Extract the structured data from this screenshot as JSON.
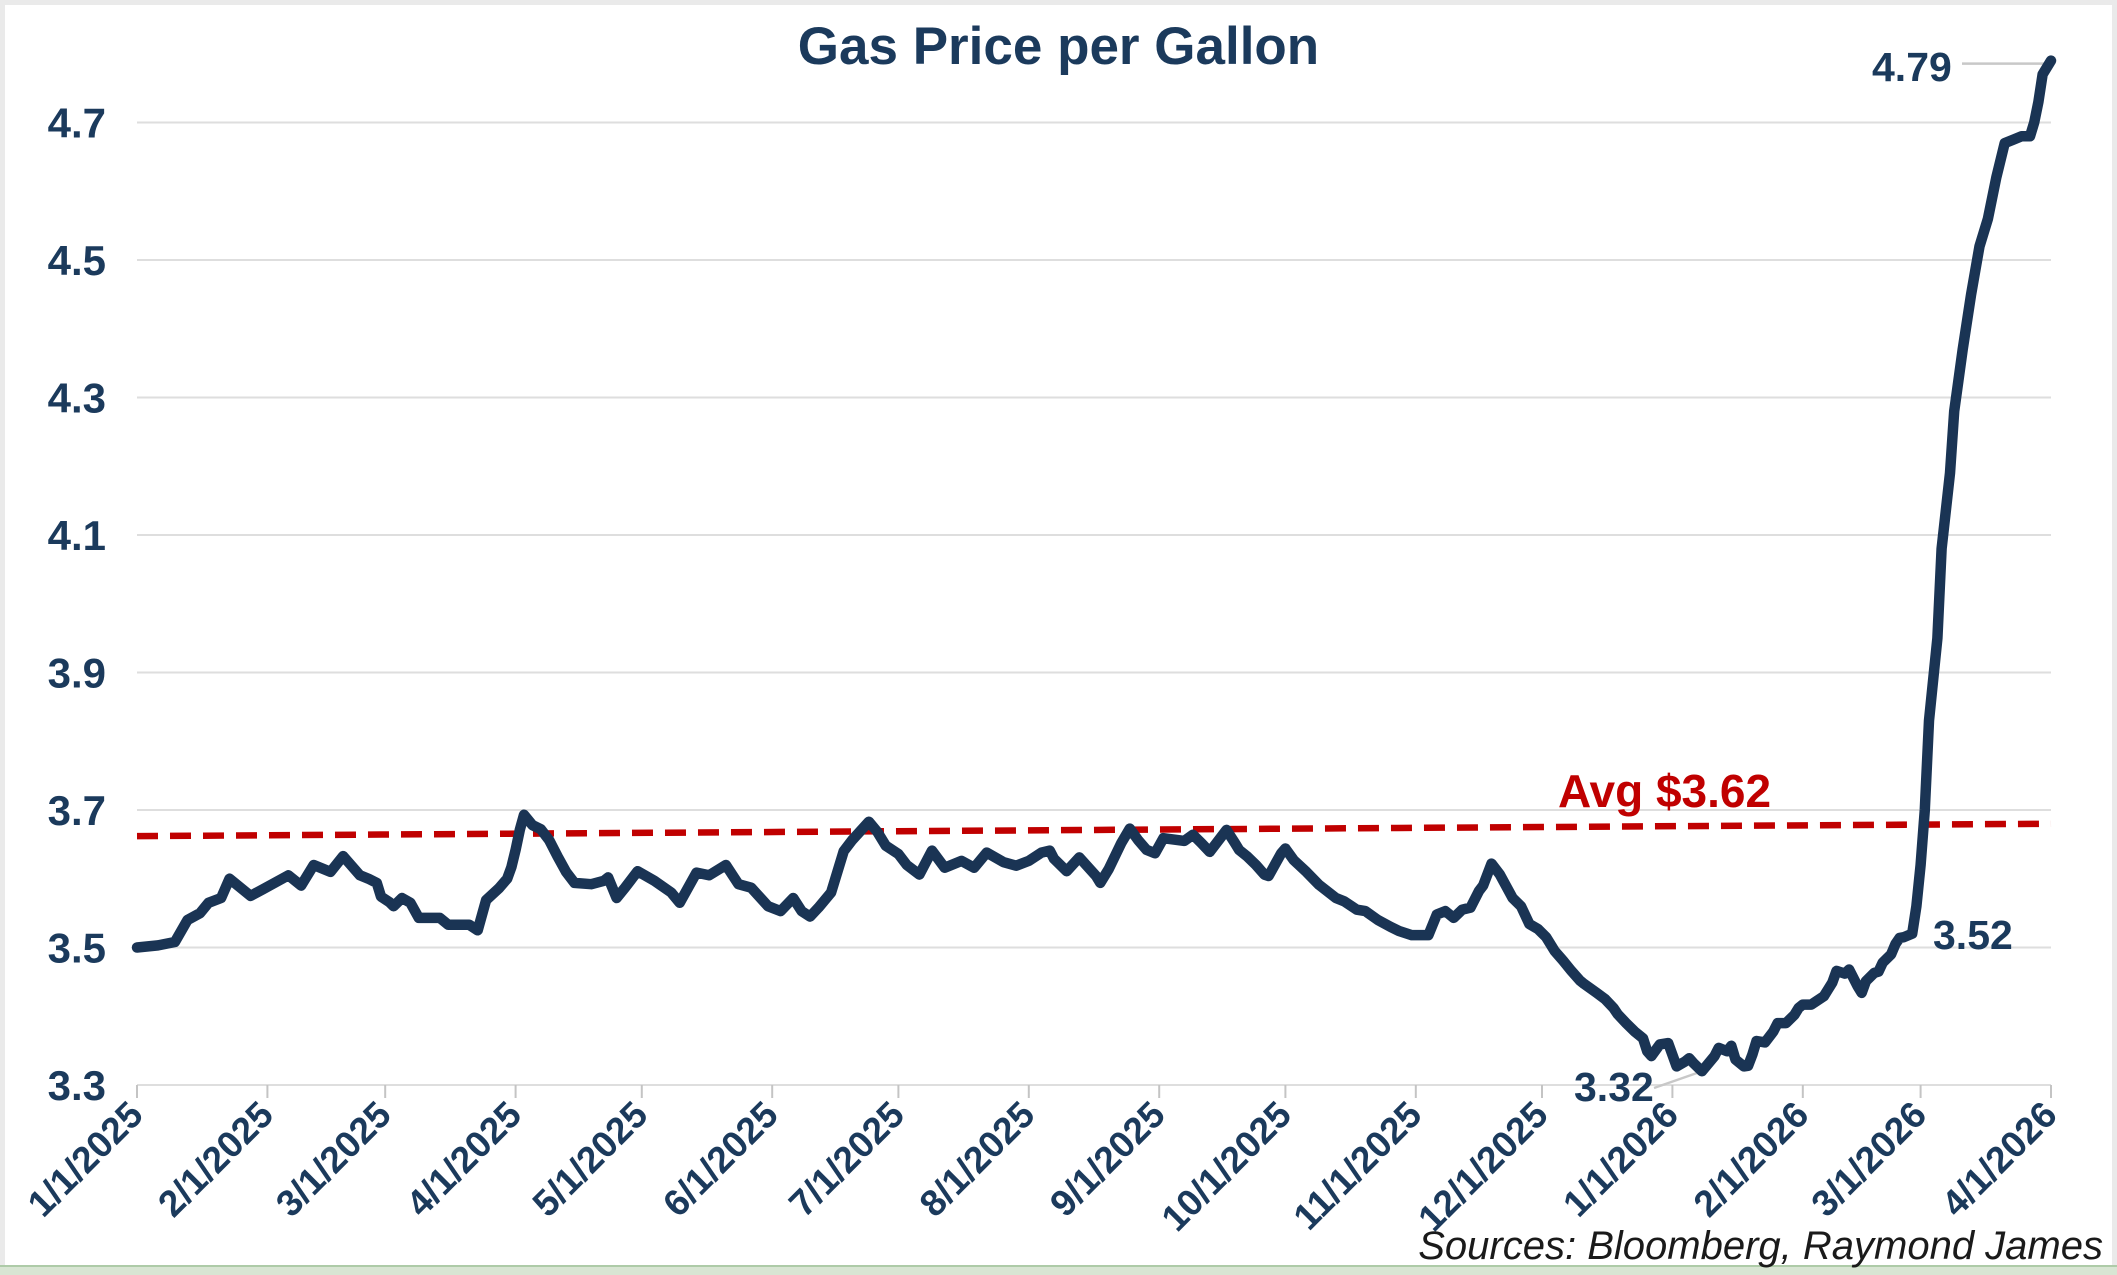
{
  "page": {
    "background": "#ffffff",
    "border_color": "#eaeaea",
    "bottom_strip_color": "#d8e5d3"
  },
  "header": {
    "title": "Gas Price per Gallon"
  },
  "footer": {
    "sources": "Sources: Bloomberg, Raymond James"
  },
  "colors": {
    "navy_text": "#1b3a5c",
    "line": "#1a3454",
    "avg_red": "#c00000",
    "gridline": "#dedede",
    "tick": "#c4c4c4",
    "leader": "#c8c8c8"
  },
  "annotations": {
    "high": "4.79",
    "pre_spike": "3.52",
    "low": "3.32",
    "avg_label": "Avg $3.62"
  },
  "chart_data": {
    "type": "line",
    "title": "Gas Price per Gallon",
    "xlabel": "",
    "ylabel": "",
    "grid": "horizontal",
    "legend": "none",
    "ylim": [
      3.3,
      4.8
    ],
    "y_ticks": [
      "3.3",
      "3.5",
      "3.7",
      "3.9",
      "4.1",
      "4.3",
      "4.5",
      "4.7"
    ],
    "y_tick_values": [
      3.3,
      3.5,
      3.7,
      3.9,
      4.1,
      4.3,
      4.5,
      4.7
    ],
    "x_unit": "days since 1/1/2025",
    "x_range_days": [
      0,
      455
    ],
    "x_ticks": [
      {
        "label": "1/1/2025",
        "day": 0
      },
      {
        "label": "2/1/2025",
        "day": 31
      },
      {
        "label": "3/1/2025",
        "day": 59
      },
      {
        "label": "4/1/2025",
        "day": 90
      },
      {
        "label": "5/1/2025",
        "day": 120
      },
      {
        "label": "6/1/2025",
        "day": 151
      },
      {
        "label": "7/1/2025",
        "day": 181
      },
      {
        "label": "8/1/2025",
        "day": 212
      },
      {
        "label": "9/1/2025",
        "day": 243
      },
      {
        "label": "10/1/2025",
        "day": 273
      },
      {
        "label": "11/1/2025",
        "day": 304
      },
      {
        "label": "12/1/2025",
        "day": 334
      },
      {
        "label": "1/1/2026",
        "day": 365
      },
      {
        "label": "2/1/2026",
        "day": 396
      },
      {
        "label": "3/1/2026",
        "day": 424
      },
      {
        "label": "4/1/2026",
        "day": 455
      }
    ],
    "avg_line": {
      "label": "Avg $3.62",
      "value": 3.62,
      "drawn_start_value": 3.662,
      "drawn_end_value": 3.68,
      "style": "dashed",
      "color": "#c00000"
    },
    "point_annotations": [
      {
        "label": "4.79",
        "day": 455,
        "value": 4.79,
        "meaning": "final peak"
      },
      {
        "label": "3.52",
        "day": 422,
        "value": 3.52,
        "meaning": "level before spike"
      },
      {
        "label": "3.32",
        "day": 372,
        "value": 3.32,
        "meaning": "minimum"
      }
    ],
    "series": [
      {
        "name": "Gas price per gallon (USD)",
        "points": [
          [
            0,
            3.5
          ],
          [
            5,
            3.503
          ],
          [
            9,
            3.508
          ],
          [
            12,
            3.54
          ],
          [
            15,
            3.55
          ],
          [
            17,
            3.565
          ],
          [
            20,
            3.572
          ],
          [
            22,
            3.6
          ],
          [
            25,
            3.585
          ],
          [
            27,
            3.575
          ],
          [
            30,
            3.585
          ],
          [
            36,
            3.605
          ],
          [
            39,
            3.59
          ],
          [
            42,
            3.62
          ],
          [
            46,
            3.61
          ],
          [
            49,
            3.633
          ],
          [
            53,
            3.605
          ],
          [
            55,
            3.6
          ],
          [
            57,
            3.594
          ],
          [
            58,
            3.574
          ],
          [
            60,
            3.566
          ],
          [
            61,
            3.56
          ],
          [
            63,
            3.572
          ],
          [
            65,
            3.565
          ],
          [
            67,
            3.543
          ],
          [
            72,
            3.543
          ],
          [
            74,
            3.533
          ],
          [
            79,
            3.533
          ],
          [
            81,
            3.525
          ],
          [
            83,
            3.569
          ],
          [
            86,
            3.586
          ],
          [
            88,
            3.6
          ],
          [
            89,
            3.617
          ],
          [
            90,
            3.642
          ],
          [
            91,
            3.671
          ],
          [
            92,
            3.693
          ],
          [
            94,
            3.678
          ],
          [
            96,
            3.672
          ],
          [
            98,
            3.656
          ],
          [
            100,
            3.632
          ],
          [
            102,
            3.61
          ],
          [
            104,
            3.594
          ],
          [
            108,
            3.592
          ],
          [
            111,
            3.597
          ],
          [
            112,
            3.602
          ],
          [
            114,
            3.572
          ],
          [
            116,
            3.587
          ],
          [
            119,
            3.611
          ],
          [
            123,
            3.597
          ],
          [
            127,
            3.58
          ],
          [
            129,
            3.565
          ],
          [
            133,
            3.609
          ],
          [
            136,
            3.605
          ],
          [
            140,
            3.62
          ],
          [
            143,
            3.592
          ],
          [
            146,
            3.587
          ],
          [
            150,
            3.56
          ],
          [
            153,
            3.553
          ],
          [
            156,
            3.572
          ],
          [
            158,
            3.553
          ],
          [
            160,
            3.545
          ],
          [
            162,
            3.558
          ],
          [
            165,
            3.58
          ],
          [
            168,
            3.64
          ],
          [
            170,
            3.656
          ],
          [
            174,
            3.683
          ],
          [
            176,
            3.668
          ],
          [
            178,
            3.648
          ],
          [
            181,
            3.636
          ],
          [
            183,
            3.62
          ],
          [
            186,
            3.606
          ],
          [
            189,
            3.641
          ],
          [
            192,
            3.616
          ],
          [
            196,
            3.626
          ],
          [
            199,
            3.616
          ],
          [
            202,
            3.638
          ],
          [
            206,
            3.624
          ],
          [
            209,
            3.619
          ],
          [
            212,
            3.626
          ],
          [
            215,
            3.638
          ],
          [
            217,
            3.641
          ],
          [
            218,
            3.629
          ],
          [
            221,
            3.611
          ],
          [
            224,
            3.631
          ],
          [
            228,
            3.604
          ],
          [
            229,
            3.594
          ],
          [
            231,
            3.614
          ],
          [
            234,
            3.652
          ],
          [
            236,
            3.673
          ],
          [
            238,
            3.656
          ],
          [
            240,
            3.642
          ],
          [
            242,
            3.637
          ],
          [
            244,
            3.659
          ],
          [
            249,
            3.655
          ],
          [
            251,
            3.664
          ],
          [
            253,
            3.652
          ],
          [
            255,
            3.639
          ],
          [
            259,
            3.671
          ],
          [
            261,
            3.652
          ],
          [
            262,
            3.642
          ],
          [
            264,
            3.632
          ],
          [
            266,
            3.62
          ],
          [
            268,
            3.606
          ],
          [
            269,
            3.604
          ],
          [
            272,
            3.637
          ],
          [
            273,
            3.644
          ],
          [
            275,
            3.627
          ],
          [
            278,
            3.61
          ],
          [
            281,
            3.591
          ],
          [
            285,
            3.572
          ],
          [
            287,
            3.567
          ],
          [
            290,
            3.555
          ],
          [
            292,
            3.553
          ],
          [
            295,
            3.54
          ],
          [
            298,
            3.53
          ],
          [
            300,
            3.524
          ],
          [
            303,
            3.518
          ],
          [
            307,
            3.518
          ],
          [
            309,
            3.548
          ],
          [
            311,
            3.553
          ],
          [
            313,
            3.543
          ],
          [
            315,
            3.555
          ],
          [
            317,
            3.558
          ],
          [
            319,
            3.582
          ],
          [
            320,
            3.59
          ],
          [
            322,
            3.622
          ],
          [
            324,
            3.606
          ],
          [
            327,
            3.572
          ],
          [
            329,
            3.56
          ],
          [
            331,
            3.534
          ],
          [
            333,
            3.527
          ],
          [
            335,
            3.515
          ],
          [
            337,
            3.495
          ],
          [
            339,
            3.481
          ],
          [
            341,
            3.466
          ],
          [
            343,
            3.452
          ],
          [
            344,
            3.447
          ],
          [
            347,
            3.434
          ],
          [
            349,
            3.425
          ],
          [
            351,
            3.412
          ],
          [
            352,
            3.403
          ],
          [
            354,
            3.39
          ],
          [
            356,
            3.378
          ],
          [
            358,
            3.368
          ],
          [
            359,
            3.349
          ],
          [
            360,
            3.342
          ],
          [
            362,
            3.359
          ],
          [
            364,
            3.361
          ],
          [
            366,
            3.327
          ],
          [
            368,
            3.334
          ],
          [
            369,
            3.339
          ],
          [
            370,
            3.332
          ],
          [
            372,
            3.32
          ],
          [
            375,
            3.342
          ],
          [
            376,
            3.354
          ],
          [
            378,
            3.349
          ],
          [
            379,
            3.357
          ],
          [
            380,
            3.337
          ],
          [
            382,
            3.327
          ],
          [
            383,
            3.328
          ],
          [
            384,
            3.344
          ],
          [
            385,
            3.364
          ],
          [
            387,
            3.362
          ],
          [
            389,
            3.378
          ],
          [
            390,
            3.39
          ],
          [
            392,
            3.39
          ],
          [
            394,
            3.402
          ],
          [
            395,
            3.412
          ],
          [
            396,
            3.417
          ],
          [
            398,
            3.417
          ],
          [
            401,
            3.429
          ],
          [
            402,
            3.439
          ],
          [
            403,
            3.449
          ],
          [
            404,
            3.466
          ],
          [
            406,
            3.462
          ],
          [
            407,
            3.468
          ],
          [
            409,
            3.444
          ],
          [
            410,
            3.434
          ],
          [
            411,
            3.451
          ],
          [
            413,
            3.463
          ],
          [
            414,
            3.465
          ],
          [
            415,
            3.478
          ],
          [
            417,
            3.49
          ],
          [
            418,
            3.505
          ],
          [
            419,
            3.514
          ],
          [
            420,
            3.515
          ],
          [
            422,
            3.52
          ],
          [
            423,
            3.56
          ],
          [
            424,
            3.62
          ],
          [
            425,
            3.7
          ],
          [
            426,
            3.83
          ],
          [
            428,
            3.95
          ],
          [
            429,
            4.08
          ],
          [
            431,
            4.19
          ],
          [
            432,
            4.28
          ],
          [
            434,
            4.37
          ],
          [
            436,
            4.45
          ],
          [
            438,
            4.52
          ],
          [
            440,
            4.56
          ],
          [
            442,
            4.62
          ],
          [
            444,
            4.67
          ],
          [
            446,
            4.675
          ],
          [
            448,
            4.68
          ],
          [
            450,
            4.68
          ],
          [
            451,
            4.7
          ],
          [
            452,
            4.73
          ],
          [
            453,
            4.77
          ],
          [
            455,
            4.79
          ]
        ]
      }
    ]
  }
}
